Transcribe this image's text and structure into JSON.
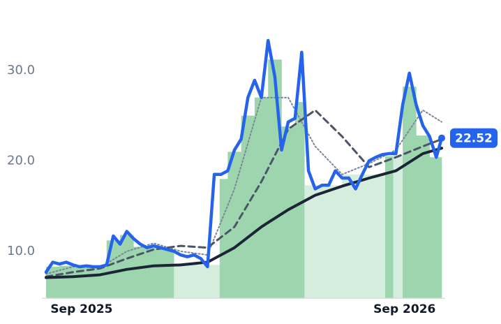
{
  "chart_data": {
    "type": "line",
    "xlim": [
      0,
      14.7
    ],
    "xticks": [
      {
        "value": 1.32,
        "label": "Sep 2025"
      },
      {
        "value": 13.32,
        "label": "Sep 2026"
      }
    ],
    "ylim": [
      4.8,
      35
    ],
    "yticks": [
      {
        "value": 10,
        "label": "10.0"
      },
      {
        "value": 20,
        "label": "20.0"
      },
      {
        "value": 30,
        "label": "30.0"
      }
    ],
    "grid": false,
    "series": [
      {
        "type": "bar",
        "bins": [
          0,
          0.5,
          1,
          1.5,
          2,
          2.25,
          2.75,
          3.25,
          3.75,
          4.25,
          4.75,
          6.45,
          6.75,
          7.25,
          7.75,
          8.25,
          8.75,
          9.25,
          9.6,
          11,
          12.6,
          12.9,
          13.25,
          13.75,
          14.25,
          14.7
        ],
        "values": [
          8.3,
          8.4,
          8.2,
          8.2,
          8.3,
          11.2,
          11.8,
          10.5,
          10.4,
          10.2,
          8.5,
          18.0,
          21.0,
          25.0,
          27.0,
          31.2,
          23.8,
          26.5,
          17.3,
          18.5,
          20.5,
          20.6,
          28.2,
          22.8,
          20.4
        ],
        "colors": [
          "#9dd6ae",
          "#9dd6ae",
          "#9dd6ae",
          "#9dd6ae",
          "#9dd6ae",
          "#9dd6ae",
          "#9dd6ae",
          "#9dd6ae",
          "#9dd6ae",
          "#9dd6ae",
          "#d5eddc",
          "#9dd6ae",
          "#9dd6ae",
          "#9dd6ae",
          "#9dd6ae",
          "#9dd6ae",
          "#9dd6ae",
          "#9dd6ae",
          "#d5eddc",
          "#d5eddc",
          "#9dd6ae",
          "#d5eddc",
          "#9dd6ae",
          "#9dd6ae",
          "#9dd6ae"
        ]
      },
      {
        "type": "line",
        "color": "#7b8799",
        "dash": "2 3",
        "width": 2,
        "x": [
          0,
          1,
          2,
          3,
          4,
          5,
          6,
          7,
          8,
          9,
          10,
          11,
          12,
          13,
          14,
          14.7
        ],
        "values": [
          7.5,
          8.3,
          8.2,
          10.0,
          10.9,
          10.0,
          9.6,
          16.9,
          27.0,
          27.0,
          21.6,
          18.5,
          19.7,
          21.2,
          25.6,
          24.3
        ]
      },
      {
        "type": "line",
        "color": "#4b5567",
        "dash": "9 6",
        "width": 3,
        "x": [
          0,
          1,
          2,
          3,
          4,
          5,
          6,
          7,
          8,
          9,
          10,
          11,
          12,
          13,
          14,
          14.7
        ],
        "values": [
          7.2,
          7.7,
          8.1,
          9.2,
          10.2,
          10.6,
          10.4,
          12.7,
          17.7,
          23.5,
          25.6,
          22.7,
          19.3,
          20.4,
          21.6,
          22.4
        ]
      },
      {
        "type": "line",
        "color": "#1c2536",
        "dash": "none",
        "width": 4,
        "x": [
          0,
          1,
          2,
          3,
          4,
          5,
          6,
          7,
          8,
          9,
          10,
          11,
          12,
          13,
          14,
          14.7
        ],
        "values": [
          7.1,
          7.2,
          7.4,
          8.0,
          8.4,
          8.5,
          8.8,
          10.4,
          12.7,
          14.6,
          16.2,
          17.2,
          18.1,
          18.9,
          20.8,
          21.4
        ]
      },
      {
        "type": "line",
        "color": "#2563eb",
        "dash": "none",
        "width": 4.5,
        "last_marker": true,
        "x": [
          0,
          0.25,
          0.5,
          0.75,
          1,
          1.25,
          1.5,
          1.75,
          2,
          2.25,
          2.5,
          2.75,
          3,
          3.25,
          3.5,
          3.75,
          4,
          4.25,
          4.5,
          4.75,
          5,
          5.25,
          5.5,
          5.75,
          6,
          6.25,
          6.5,
          6.75,
          7,
          7.25,
          7.5,
          7.75,
          8,
          8.25,
          8.5,
          8.75,
          9,
          9.25,
          9.5,
          9.75,
          10,
          10.25,
          10.5,
          10.75,
          11,
          11.25,
          11.5,
          11.75,
          12,
          12.25,
          12.5,
          12.75,
          13,
          13.25,
          13.5,
          13.75,
          14,
          14.25,
          14.5,
          14.7
        ],
        "values": [
          7.7,
          8.8,
          8.6,
          8.8,
          8.5,
          8.3,
          8.4,
          8.3,
          8.3,
          8.5,
          11.7,
          10.8,
          12.2,
          11.4,
          10.8,
          10.4,
          10.6,
          10.4,
          10.2,
          10.0,
          9.6,
          9.4,
          9.6,
          9.2,
          8.3,
          18.5,
          18.5,
          18.9,
          21.2,
          22.4,
          27.0,
          28.9,
          27.0,
          33.3,
          29.3,
          21.2,
          24.3,
          24.7,
          32.0,
          18.9,
          16.9,
          17.3,
          17.3,
          18.9,
          18.1,
          18.1,
          16.9,
          18.5,
          20.0,
          20.4,
          20.7,
          20.8,
          20.8,
          26.2,
          29.7,
          26.2,
          23.9,
          22.7,
          20.4,
          22.52
        ]
      }
    ]
  }
}
